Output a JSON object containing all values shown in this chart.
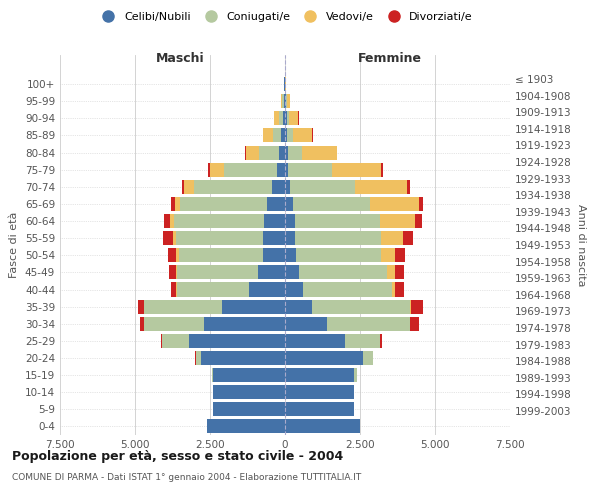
{
  "age_groups": [
    "0-4",
    "5-9",
    "10-14",
    "15-19",
    "20-24",
    "25-29",
    "30-34",
    "35-39",
    "40-44",
    "45-49",
    "50-54",
    "55-59",
    "60-64",
    "65-69",
    "70-74",
    "75-79",
    "80-84",
    "85-89",
    "90-94",
    "95-99",
    "100+"
  ],
  "birth_years": [
    "1999-2003",
    "1994-1998",
    "1989-1993",
    "1984-1988",
    "1979-1983",
    "1974-1978",
    "1969-1973",
    "1964-1968",
    "1959-1963",
    "1954-1958",
    "1949-1953",
    "1944-1948",
    "1939-1943",
    "1934-1938",
    "1929-1933",
    "1924-1928",
    "1919-1923",
    "1914-1918",
    "1909-1913",
    "1904-1908",
    "≤ 1903"
  ],
  "colors": {
    "celibe": "#4472a8",
    "coniugato": "#b5c9a0",
    "vedovo": "#f0c060",
    "divorziato": "#cc2222"
  },
  "maschi": {
    "celibe": [
      2600,
      2400,
      2400,
      2400,
      2800,
      3200,
      2700,
      2100,
      1200,
      900,
      750,
      750,
      700,
      600,
      450,
      280,
      200,
      120,
      80,
      50,
      20
    ],
    "coniugato": [
      3,
      3,
      8,
      40,
      180,
      900,
      2000,
      2600,
      2400,
      2700,
      2800,
      2900,
      3000,
      2900,
      2600,
      1750,
      680,
      280,
      110,
      35,
      8
    ],
    "vedovo": [
      1,
      1,
      1,
      2,
      3,
      8,
      10,
      15,
      25,
      40,
      70,
      90,
      130,
      180,
      330,
      480,
      420,
      320,
      180,
      55,
      8
    ],
    "divorziato": [
      1,
      1,
      1,
      3,
      15,
      40,
      130,
      180,
      180,
      230,
      280,
      320,
      220,
      130,
      70,
      45,
      25,
      15,
      8,
      4,
      2
    ]
  },
  "femmine": {
    "nubile": [
      2500,
      2300,
      2300,
      2300,
      2600,
      2000,
      1400,
      900,
      600,
      450,
      360,
      340,
      330,
      270,
      180,
      110,
      90,
      70,
      55,
      35,
      12
    ],
    "coniugata": [
      3,
      3,
      12,
      85,
      320,
      1150,
      2750,
      3250,
      2950,
      2950,
      2850,
      2850,
      2850,
      2550,
      2150,
      1450,
      480,
      180,
      70,
      25,
      4
    ],
    "vedova": [
      1,
      1,
      1,
      2,
      3,
      10,
      30,
      65,
      130,
      280,
      470,
      750,
      1150,
      1650,
      1750,
      1650,
      1150,
      650,
      320,
      90,
      18
    ],
    "divorziata": [
      1,
      1,
      1,
      3,
      18,
      70,
      280,
      380,
      280,
      280,
      330,
      330,
      230,
      140,
      90,
      55,
      28,
      18,
      8,
      4,
      2
    ]
  },
  "xlim": 7500,
  "xtick_labels": [
    "7.500",
    "5.000",
    "2.500",
    "0",
    "2.500",
    "5.000",
    "7.500"
  ],
  "title": "Popolazione per età, sesso e stato civile - 2004",
  "subtitle": "COMUNE DI PARMA - Dati ISTAT 1° gennaio 2004 - Elaborazione TUTTITALIA.IT",
  "ylabel_left": "Fasce di età",
  "ylabel_right": "Anni di nascita",
  "legend_labels": [
    "Celibi/Nubili",
    "Coniugati/e",
    "Vedovi/e",
    "Divorziati/e"
  ],
  "maschi_label": "Maschi",
  "femmine_label": "Femmine"
}
